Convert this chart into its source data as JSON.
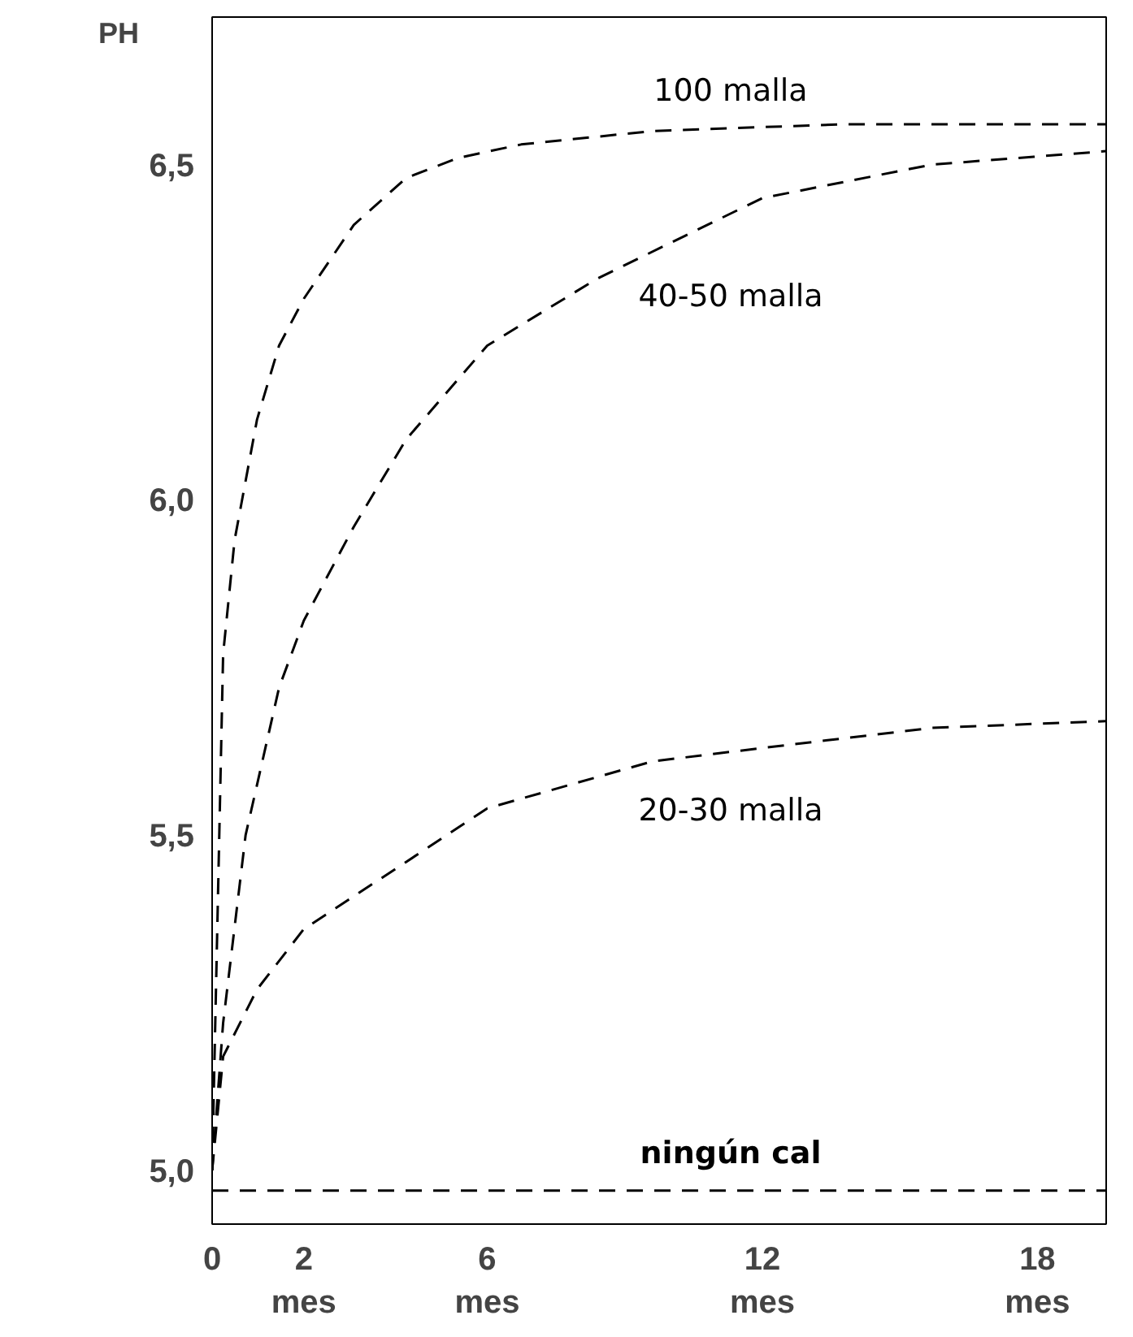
{
  "chart_data": {
    "type": "line",
    "ylabel": "PH",
    "line_style": "dashed",
    "grid": false,
    "xlim": [
      0,
      19.5
    ],
    "ylim": [
      4.92,
      6.72
    ],
    "xticks": [
      0,
      {
        "value": 2,
        "label": "2\nmes"
      },
      {
        "value": 6,
        "label": "6\nmes"
      },
      {
        "value": 12,
        "label": "12\nmes"
      },
      {
        "value": 18,
        "label": "18\nmes"
      }
    ],
    "yticks": [
      {
        "value": 5,
        "label": "5,0"
      },
      {
        "value": 5.5,
        "label": "5,5"
      },
      {
        "value": 6,
        "label": "6,0"
      },
      {
        "value": 6.5,
        "label": "6,5"
      }
    ],
    "series": [
      {
        "name": "100 malla",
        "color": "#000000",
        "x": [
          0,
          0.24,
          0.49,
          0.98,
          1.46,
          2,
          3.09,
          4.23,
          5.37,
          6.74,
          9.6,
          13.7,
          19.5
        ],
        "values": [
          5.0,
          5.77,
          5.94,
          6.12,
          6.23,
          6.3,
          6.41,
          6.48,
          6.51,
          6.53,
          6.55,
          6.56,
          6.56
        ]
      },
      {
        "name": "40-50 malla",
        "color": "#000000",
        "x": [
          0,
          0.24,
          0.73,
          1.46,
          2,
          3.09,
          4.23,
          6,
          8.4,
          12,
          15.7,
          19.5
        ],
        "values": [
          5.0,
          5.22,
          5.5,
          5.72,
          5.82,
          5.96,
          6.09,
          6.23,
          6.33,
          6.45,
          6.5,
          6.52
        ]
      },
      {
        "name": "20-30 malla",
        "color": "#000000",
        "x": [
          0,
          0.24,
          0.98,
          2,
          4.23,
          6,
          9.6,
          12,
          15.7,
          19.5
        ],
        "values": [
          5.0,
          5.17,
          5.27,
          5.36,
          5.46,
          5.54,
          5.61,
          5.63,
          5.66,
          5.67
        ]
      },
      {
        "name": "ningún cal",
        "color": "#000000",
        "x": [
          0,
          19.5
        ],
        "values": [
          4.97,
          4.97
        ]
      }
    ]
  }
}
